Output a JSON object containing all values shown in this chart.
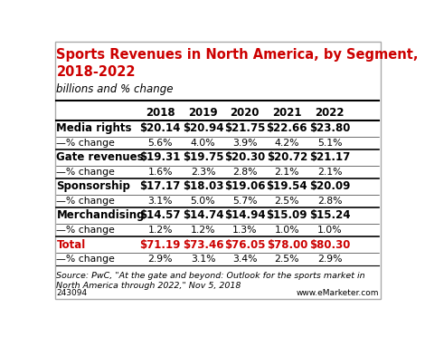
{
  "title": "Sports Revenues in North America, by Segment,\n2018-2022",
  "subtitle": "billions and % change",
  "columns": [
    "",
    "2018",
    "2019",
    "2020",
    "2021",
    "2022"
  ],
  "rows": [
    {
      "label": "Media rights",
      "bold": true,
      "color": "black",
      "values": [
        "$20.14",
        "$20.94",
        "$21.75",
        "$22.66",
        "$23.80"
      ],
      "val_bold": true
    },
    {
      "label": "—% change",
      "bold": false,
      "color": "black",
      "values": [
        "5.6%",
        "4.0%",
        "3.9%",
        "4.2%",
        "5.1%"
      ],
      "val_bold": false
    },
    {
      "label": "Gate revenues",
      "bold": true,
      "color": "black",
      "values": [
        "$19.31",
        "$19.75",
        "$20.30",
        "$20.72",
        "$21.17"
      ],
      "val_bold": true
    },
    {
      "label": "—% change",
      "bold": false,
      "color": "black",
      "values": [
        "1.6%",
        "2.3%",
        "2.8%",
        "2.1%",
        "2.1%"
      ],
      "val_bold": false
    },
    {
      "label": "Sponsorship",
      "bold": true,
      "color": "black",
      "values": [
        "$17.17",
        "$18.03",
        "$19.06",
        "$19.54",
        "$20.09"
      ],
      "val_bold": true
    },
    {
      "label": "—% change",
      "bold": false,
      "color": "black",
      "values": [
        "3.1%",
        "5.0%",
        "5.7%",
        "2.5%",
        "2.8%"
      ],
      "val_bold": false
    },
    {
      "label": "Merchandising",
      "bold": true,
      "color": "black",
      "values": [
        "$14.57",
        "$14.74",
        "$14.94",
        "$15.09",
        "$15.24"
      ],
      "val_bold": true
    },
    {
      "label": "—% change",
      "bold": false,
      "color": "black",
      "values": [
        "1.2%",
        "1.2%",
        "1.3%",
        "1.0%",
        "1.0%"
      ],
      "val_bold": false
    },
    {
      "label": "Total",
      "bold": true,
      "color": "#cc0000",
      "values": [
        "$71.19",
        "$73.46",
        "$76.05",
        "$78.00",
        "$80.30"
      ],
      "val_bold": true,
      "val_color": "#cc0000"
    },
    {
      "label": "—% change",
      "bold": false,
      "color": "black",
      "values": [
        "2.9%",
        "3.1%",
        "3.4%",
        "2.5%",
        "2.9%"
      ],
      "val_bold": false
    }
  ],
  "footer": "Source: PwC, \"At the gate and beyond: Outlook for the sports market in\nNorth America through 2022,\" Nov 5, 2018",
  "footer_id": "243094",
  "footer_brand": "www.eMarketer.com",
  "title_color": "#cc0000",
  "bg_color": "#ffffff"
}
